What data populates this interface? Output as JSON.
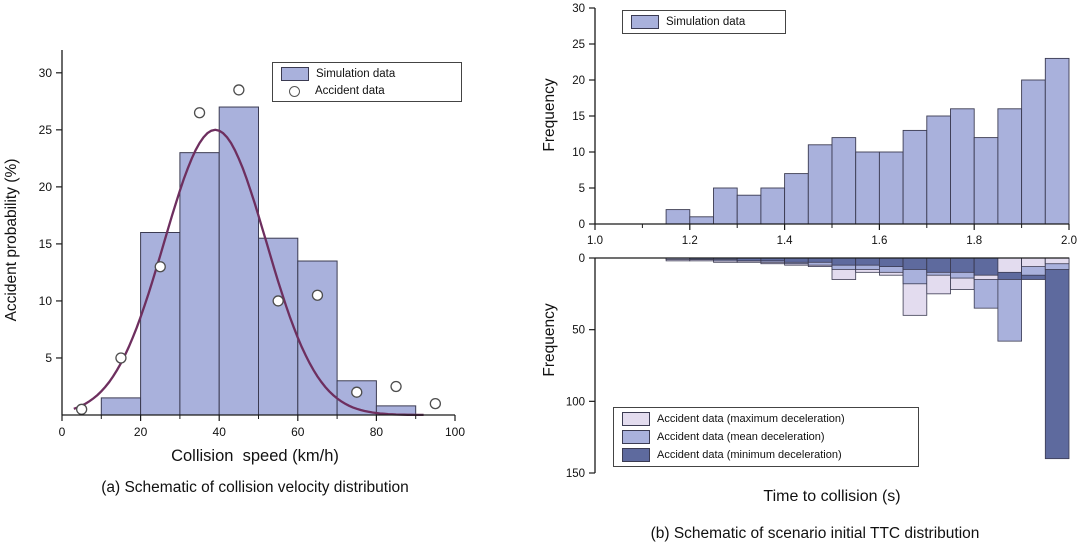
{
  "figure": {
    "caption_a": "(a) Schematic of collision velocity distribution",
    "caption_b": "(b) Schematic of scenario initial TTC distribution"
  },
  "colors": {
    "simulation": "#a9b1dc",
    "curve": "#6e2f5f",
    "accident_max": "#e3dcef",
    "accident_mean": "#a9b1dc",
    "accident_min": "#5e6a9e",
    "axis": "#1a1a1a"
  },
  "chart_data": [
    {
      "type": "bar",
      "title": "",
      "xlabel": "Collision  speed (km/h)",
      "ylabel": "Accident probability (%)",
      "xlim": [
        0,
        100
      ],
      "ylim": [
        0,
        32
      ],
      "xticks": [
        0,
        20,
        40,
        60,
        80,
        100
      ],
      "xtick_labels": [
        "0",
        "20",
        "40",
        "60",
        "80",
        "100"
      ],
      "xminor_ticks": [
        10,
        30,
        50,
        70,
        90
      ],
      "yticks": [
        5,
        10,
        15,
        20,
        25,
        30
      ],
      "ytick_labels": [
        "5",
        "10",
        "15",
        "20",
        "25",
        "30"
      ],
      "bin_width": 10,
      "bars": {
        "starts": [
          10,
          20,
          30,
          40,
          50,
          60,
          70,
          80
        ],
        "values": [
          1.5,
          16,
          23,
          27,
          15.5,
          13.5,
          3,
          0.8
        ]
      },
      "scatter": {
        "x": [
          5,
          15,
          25,
          35,
          45,
          55,
          65,
          75,
          85,
          95
        ],
        "y": [
          0.5,
          5,
          13,
          26.5,
          28.5,
          10,
          10.5,
          2,
          2.5,
          1
        ]
      },
      "curve": {
        "type": "gaussian",
        "peak": 25,
        "mean": 39,
        "sigma": 13
      },
      "legend": [
        "Simulation data",
        "Accident data"
      ]
    },
    {
      "type": "bar",
      "title": "",
      "xlabel": "",
      "ylabel": "Frequency",
      "xlim": [
        1.0,
        2.0
      ],
      "ylim": [
        0,
        30
      ],
      "xticks": [
        1.0,
        1.2,
        1.4,
        1.6,
        1.8,
        2.0
      ],
      "xtick_labels": [
        "1.0",
        "1.2",
        "1.4",
        "1.6",
        "1.8",
        "2.0"
      ],
      "xminor_ticks": [
        1.1,
        1.3,
        1.5,
        1.7,
        1.9
      ],
      "yticks": [
        0,
        5,
        10,
        15,
        20,
        25,
        30
      ],
      "ytick_labels": [
        "0",
        "5",
        "10",
        "15",
        "20",
        "25",
        "30"
      ],
      "bin_width": 0.05,
      "starts": [
        1.15,
        1.2,
        1.25,
        1.3,
        1.35,
        1.4,
        1.45,
        1.5,
        1.55,
        1.6,
        1.65,
        1.7,
        1.75,
        1.8,
        1.85,
        1.9,
        1.95
      ],
      "values": [
        2,
        1,
        5,
        4,
        5,
        7,
        11,
        12,
        10,
        10,
        13,
        15,
        16,
        12,
        16,
        20,
        23
      ],
      "legend": [
        "Simulation data"
      ]
    },
    {
      "type": "bar-inverted",
      "title": "",
      "xlabel": "Time to collision (s)",
      "ylabel": "Frequency",
      "xlim": [
        1.0,
        2.0
      ],
      "ylim": [
        0,
        150
      ],
      "yticks": [
        0,
        50,
        100,
        150
      ],
      "ytick_labels": [
        "0",
        "50",
        "100",
        "150"
      ],
      "bin_width": 0.05,
      "starts": [
        1.15,
        1.2,
        1.25,
        1.3,
        1.35,
        1.4,
        1.45,
        1.5,
        1.55,
        1.6,
        1.65,
        1.7,
        1.75,
        1.8,
        1.85,
        1.9,
        1.95
      ],
      "series": [
        {
          "name": "Accident data (maximum deceleration)",
          "color_key": "accident_max",
          "values": [
            2,
            2,
            3,
            3,
            4,
            5,
            6,
            15,
            10,
            12,
            40,
            25,
            22,
            15,
            10,
            6,
            4
          ]
        },
        {
          "name": "Accident data (mean deceleration)",
          "color_key": "accident_mean",
          "values": [
            1,
            1,
            2,
            2,
            3,
            4,
            5,
            8,
            8,
            10,
            18,
            12,
            14,
            35,
            58,
            12,
            8
          ]
        },
        {
          "name": "Accident data (minimum deceleration)",
          "color_key": "accident_min",
          "values": [
            0,
            1,
            1,
            2,
            2,
            3,
            3,
            5,
            5,
            6,
            8,
            10,
            10,
            12,
            15,
            15,
            140
          ]
        }
      ]
    }
  ]
}
